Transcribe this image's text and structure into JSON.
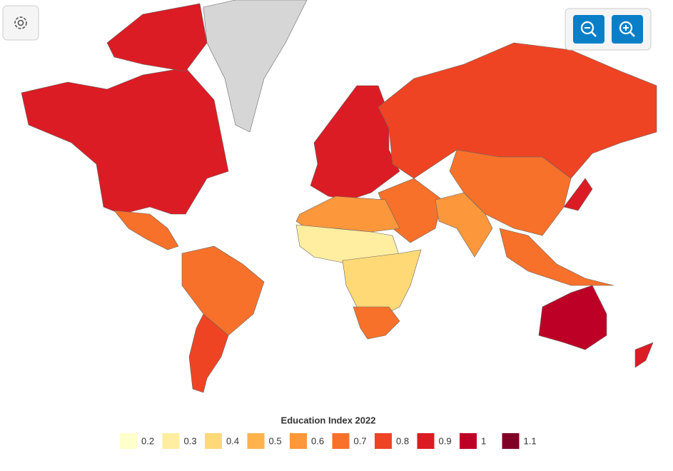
{
  "map_data": {
    "legend_title": "Education Index 2022",
    "legend": [
      {
        "value": 0.2,
        "color": "#ffffcc"
      },
      {
        "value": 0.3,
        "color": "#ffeda0"
      },
      {
        "value": 0.4,
        "color": "#fed976"
      },
      {
        "value": 0.5,
        "color": "#feb24c"
      },
      {
        "value": 0.6,
        "color": "#fd973c"
      },
      {
        "value": 0.7,
        "color": "#f7712b"
      },
      {
        "value": 0.8,
        "color": "#ee4424"
      },
      {
        "value": 0.9,
        "color": "#db1c24"
      },
      {
        "value": 1,
        "color": "#bd0026"
      },
      {
        "value": 1.1,
        "color": "#800026"
      }
    ],
    "no_data_color": "#d6d6d6",
    "regions": [
      0.9,
      0.9,
      null,
      0.65,
      0.7,
      0.85,
      0.88,
      0.83,
      0.75,
      0.65,
      0.55,
      0.65,
      0.6,
      0.35,
      0.45,
      0.7,
      0.97,
      0.92,
      0.87
    ]
  }
}
